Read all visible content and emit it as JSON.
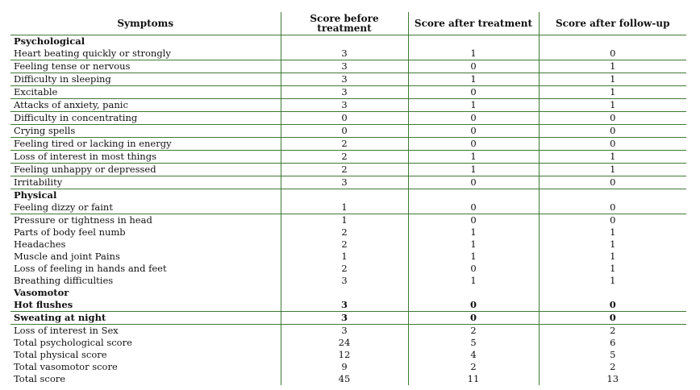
{
  "headers": [
    "Symptoms",
    "Score before treatment",
    "Score after treatment",
    "Score after follow-up"
  ],
  "rows": [
    {
      "type": "section",
      "label": "Psychological"
    },
    {
      "type": "data",
      "label": "Heart beating quickly or strongly",
      "values": [
        "3",
        "1",
        "0"
      ]
    },
    {
      "type": "data",
      "label": "Feeling tense or nervous",
      "values": [
        "3",
        "0",
        "1"
      ]
    },
    {
      "type": "data",
      "label": "Difficulty in sleeping",
      "values": [
        "3",
        "1",
        "1"
      ]
    },
    {
      "type": "data",
      "label": "Excitable",
      "values": [
        "3",
        "0",
        "1"
      ]
    },
    {
      "type": "data",
      "label": "Attacks of anxiety, panic",
      "values": [
        "3",
        "1",
        "1"
      ]
    },
    {
      "type": "data",
      "label": "Difficulty in concentrating",
      "values": [
        "0",
        "0",
        "0"
      ]
    },
    {
      "type": "data",
      "label": "Crying spells",
      "values": [
        "0",
        "0",
        "0"
      ]
    },
    {
      "type": "data",
      "label": "Feeling tired or lacking in energy",
      "values": [
        "2",
        "0",
        "0"
      ]
    },
    {
      "type": "data",
      "label": "Loss of interest in most things",
      "values": [
        "2",
        "1",
        "1"
      ]
    },
    {
      "type": "data",
      "label": "Feeling unhappy or depressed",
      "values": [
        "2",
        "1",
        "1"
      ]
    },
    {
      "type": "data",
      "label": "Irritability",
      "values": [
        "3",
        "0",
        "0"
      ]
    },
    {
      "type": "section",
      "label": "Physical"
    },
    {
      "type": "data",
      "label": "Feeling dizzy or faint",
      "values": [
        "1",
        "0",
        "0"
      ]
    },
    {
      "type": "plain",
      "label": "Pressure or tightness in head",
      "values": [
        "1",
        "0",
        "0"
      ]
    },
    {
      "type": "plain",
      "label": "Parts of body feel numb",
      "values": [
        "2",
        "1",
        "1"
      ]
    },
    {
      "type": "plain",
      "label": "Headaches",
      "values": [
        "2",
        "1",
        "1"
      ]
    },
    {
      "type": "plain",
      "label": "Muscle and joint Pains",
      "values": [
        "1",
        "1",
        "1"
      ]
    },
    {
      "type": "plain",
      "label": "Loss of feeling in hands and feet",
      "values": [
        "2",
        "0",
        "1"
      ]
    },
    {
      "type": "plain",
      "label": "Breathing difficulties",
      "values": [
        "3",
        "1",
        "1"
      ]
    },
    {
      "type": "section-plain",
      "label": "Vasomotor"
    },
    {
      "type": "bold",
      "label": "Hot flushes",
      "values": [
        "3",
        "0",
        "0"
      ]
    },
    {
      "type": "bold",
      "label": "Sweating at night",
      "values": [
        "3",
        "0",
        "0"
      ]
    },
    {
      "type": "plain",
      "label": "Loss of interest in Sex",
      "values": [
        "3",
        "2",
        "2"
      ]
    },
    {
      "type": "plain",
      "label": "Total psychological score",
      "values": [
        "24",
        "5",
        "6"
      ]
    },
    {
      "type": "plain",
      "label": "Total physical score",
      "values": [
        "12",
        "4",
        "5"
      ]
    },
    {
      "type": "plain",
      "label": "Total vasomotor score",
      "values": [
        "9",
        "2",
        "2"
      ]
    },
    {
      "type": "plain",
      "label": "Total score",
      "values": [
        "45",
        "11",
        "13"
      ]
    }
  ]
}
